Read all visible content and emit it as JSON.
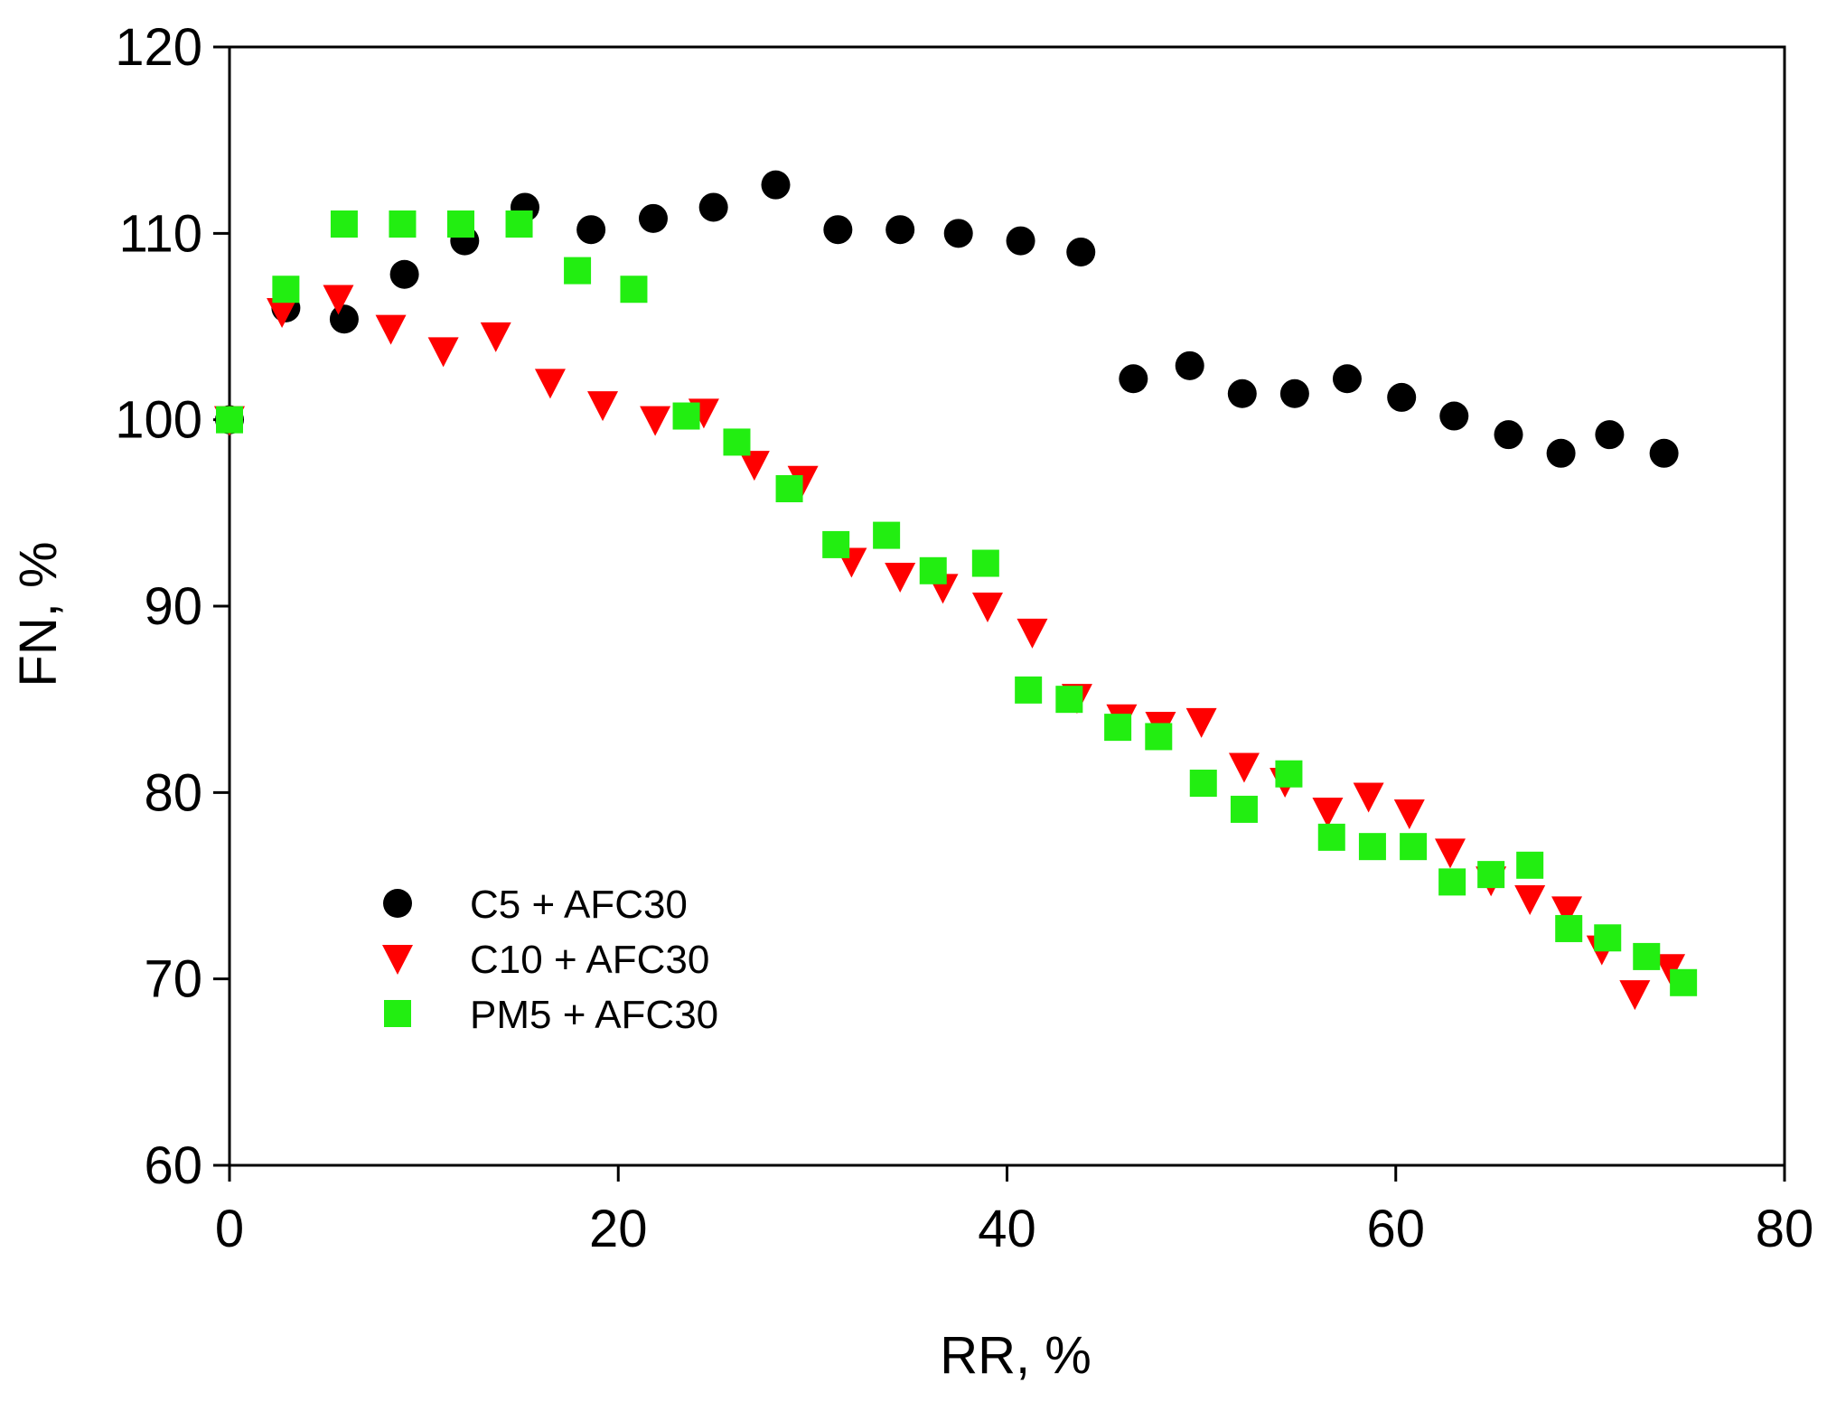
{
  "chart_data": {
    "type": "scatter",
    "title": "",
    "xlabel": "RR, %",
    "ylabel": "FN, %",
    "xlim": [
      0,
      80
    ],
    "ylim": [
      60,
      120
    ],
    "xticks": [
      0,
      20,
      40,
      60,
      80
    ],
    "yticks": [
      60,
      70,
      80,
      90,
      100,
      110,
      120
    ],
    "xtick_labels": [
      "0",
      "20",
      "40",
      "60",
      "80"
    ],
    "ytick_labels": [
      "60",
      "70",
      "80",
      "90",
      "100",
      "110",
      "120"
    ],
    "grid": false,
    "legend_position": "lower-left",
    "series": [
      {
        "name": "C5 + AFC30",
        "marker": "circle",
        "color": "#000000",
        "x": [
          0,
          2.9,
          5.9,
          9.0,
          12.1,
          15.2,
          18.6,
          21.8,
          24.9,
          28.1,
          31.3,
          34.5,
          37.5,
          40.7,
          43.8,
          46.5,
          49.4,
          52.1,
          54.8,
          57.5,
          60.3,
          63.0,
          65.8,
          68.5,
          71.0,
          73.8
        ],
        "y": [
          100.0,
          106.0,
          105.4,
          107.8,
          109.6,
          111.4,
          110.2,
          110.8,
          111.4,
          112.6,
          110.2,
          110.2,
          110.0,
          109.6,
          109.0,
          102.2,
          102.9,
          101.4,
          101.4,
          102.2,
          101.2,
          100.2,
          99.2,
          98.2,
          99.2,
          98.2
        ]
      },
      {
        "name": "C10 + AFC30",
        "marker": "triangle-down",
        "color": "#ff0000",
        "x": [
          0,
          2.7,
          5.6,
          8.3,
          11.0,
          13.7,
          16.5,
          19.2,
          21.9,
          24.4,
          27.0,
          29.5,
          32.0,
          34.5,
          36.7,
          39.0,
          41.3,
          43.6,
          45.9,
          47.9,
          50.0,
          52.2,
          54.3,
          56.5,
          58.6,
          60.7,
          62.8,
          64.9,
          66.9,
          68.8,
          70.6,
          72.3,
          74.1
        ],
        "y": [
          100.0,
          105.8,
          106.5,
          104.9,
          103.7,
          104.5,
          102.0,
          100.8,
          100.0,
          100.4,
          97.6,
          96.8,
          92.4,
          91.6,
          91.0,
          90.0,
          88.6,
          85.1,
          84.0,
          83.6,
          83.8,
          81.4,
          80.6,
          79.0,
          79.8,
          78.9,
          76.8,
          75.3,
          74.3,
          73.7,
          71.6,
          69.2,
          70.6
        ]
      },
      {
        "name": "PM5 + AFC30",
        "marker": "square",
        "color": "#22ee11",
        "x": [
          0,
          2.9,
          5.9,
          8.9,
          11.9,
          14.9,
          17.9,
          20.8,
          23.5,
          26.1,
          28.8,
          31.2,
          33.8,
          36.2,
          38.9,
          41.1,
          43.2,
          45.7,
          47.8,
          50.1,
          52.2,
          54.5,
          56.7,
          58.8,
          60.9,
          62.9,
          64.9,
          66.9,
          68.9,
          70.9,
          72.9,
          74.8
        ],
        "y": [
          100.0,
          107.0,
          110.5,
          110.5,
          110.5,
          110.5,
          108.0,
          107.0,
          100.2,
          98.8,
          96.3,
          93.3,
          93.8,
          91.9,
          92.3,
          85.5,
          85.0,
          83.5,
          83.0,
          80.5,
          79.1,
          81.0,
          77.6,
          77.1,
          77.1,
          75.2,
          75.6,
          76.1,
          72.7,
          72.2,
          71.2,
          69.8
        ]
      }
    ]
  }
}
